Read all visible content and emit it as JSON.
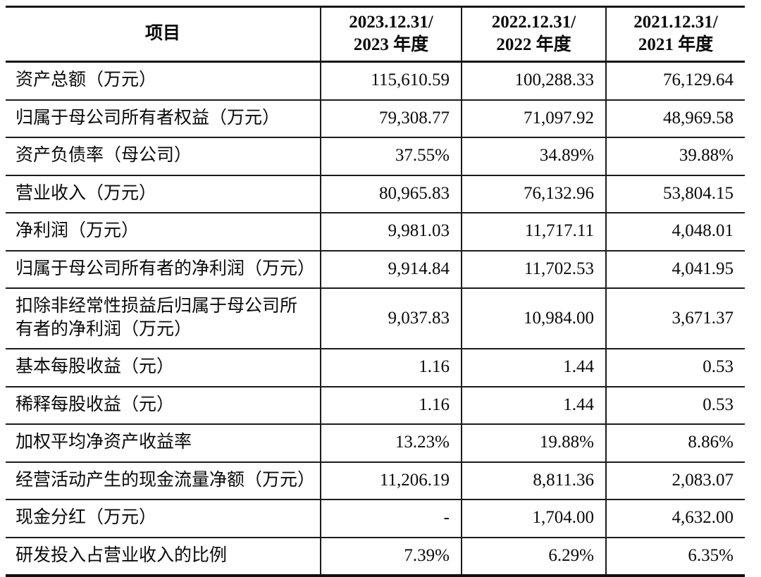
{
  "table": {
    "item_header": "项目",
    "col_headers": [
      {
        "line1": "2023.12.31/",
        "line2": "2023 年度"
      },
      {
        "line1": "2022.12.31/",
        "line2": "2022 年度"
      },
      {
        "line1": "2021.12.31/",
        "line2": "2021 年度"
      }
    ],
    "rows": [
      {
        "label": "资产总额（万元）",
        "values": [
          "115,610.59",
          "100,288.33",
          "76,129.64"
        ]
      },
      {
        "label": "归属于母公司所有者权益（万元）",
        "values": [
          "79,308.77",
          "71,097.92",
          "48,969.58"
        ]
      },
      {
        "label": "资产负债率（母公司）",
        "values": [
          "37.55%",
          "34.89%",
          "39.88%"
        ]
      },
      {
        "label": "营业收入（万元）",
        "values": [
          "80,965.83",
          "76,132.96",
          "53,804.15"
        ]
      },
      {
        "label": "净利润（万元）",
        "values": [
          "9,981.03",
          "11,717.11",
          "4,048.01"
        ]
      },
      {
        "label": "归属于母公司所有者的净利润（万元）",
        "values": [
          "9,914.84",
          "11,702.53",
          "4,041.95"
        ]
      },
      {
        "label": "扣除非经常性损益后归属于母公司所有者的净利润（万元）",
        "values": [
          "9,037.83",
          "10,984.00",
          "3,671.37"
        ]
      },
      {
        "label": "基本每股收益（元）",
        "values": [
          "1.16",
          "1.44",
          "0.53"
        ]
      },
      {
        "label": "稀释每股收益（元）",
        "values": [
          "1.16",
          "1.44",
          "0.53"
        ]
      },
      {
        "label": "加权平均净资产收益率",
        "values": [
          "13.23%",
          "19.88%",
          "8.86%"
        ]
      },
      {
        "label": "经营活动产生的现金流量净额（万元）",
        "values": [
          "11,206.19",
          "8,811.36",
          "2,083.07"
        ]
      },
      {
        "label": "现金分红（万元）",
        "values": [
          "-",
          "1,704.00",
          "4,632.00"
        ]
      },
      {
        "label": "研发投入占营业收入的比例",
        "values": [
          "7.39%",
          "6.29%",
          "6.35%"
        ]
      }
    ],
    "colors": {
      "border": "#1b1b1b",
      "text": "#0a0a0a",
      "background": "#ffffff"
    }
  }
}
